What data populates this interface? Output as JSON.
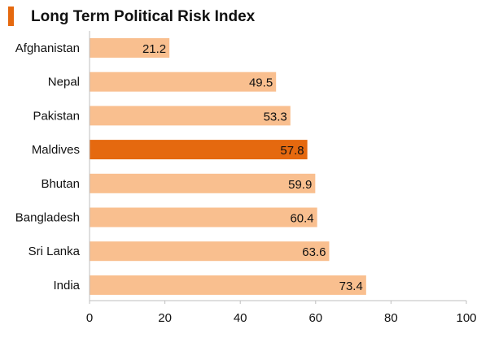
{
  "title": "Long Term Political Risk Index",
  "colors": {
    "bar": "#f9bf8f",
    "highlight": "#e5690f",
    "axis": "#bfbfbf",
    "grid": "#d9d9d9",
    "text": "#111111"
  },
  "chart_data": {
    "type": "bar",
    "orientation": "horizontal",
    "title": "Long Term Political Risk Index",
    "categories": [
      "Afghanistan",
      "Nepal",
      "Pakistan",
      "Maldives",
      "Bhutan",
      "Bangladesh",
      "Sri Lanka",
      "India"
    ],
    "values": [
      21.2,
      49.5,
      53.3,
      57.8,
      59.9,
      60.4,
      63.6,
      73.4
    ],
    "highlight": "Maldives",
    "xlabel": "",
    "ylabel": "",
    "xlim": [
      0,
      100
    ],
    "xticks": [
      0,
      20,
      40,
      60,
      80,
      100
    ],
    "grid": false,
    "data_labels": true
  }
}
